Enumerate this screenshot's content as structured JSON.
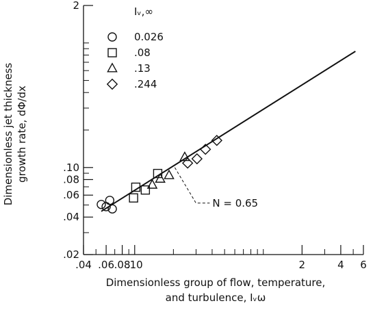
{
  "chart_data": {
    "type": "scatter",
    "title": "",
    "xlabel_line1": "Dimensionless group of flow, temperature,",
    "xlabel_line2": "and turbulence, Iᵥω",
    "ylabel_line1": "Dimensionless jet thickness",
    "ylabel_line2": "growth rate, dΦ/dx",
    "x_scale": "log",
    "y_scale": "log",
    "xlim": [
      0.04,
      6
    ],
    "ylim": [
      0.02,
      2
    ],
    "grid": false,
    "legend_placement": "top-left",
    "legend_title": "Iᵥ,∞",
    "x_ticks": [
      {
        "value": 0.04,
        "label": ".04"
      },
      {
        "value": 0.06,
        "label": ".06"
      },
      {
        "value": 0.08,
        "label": ".08"
      },
      {
        "value": 0.1,
        "label": ".10"
      },
      {
        "value": 2,
        "label": "2"
      },
      {
        "value": 4,
        "label": "4"
      },
      {
        "value": 6,
        "label": "6"
      }
    ],
    "x_minor_ticks": [
      0.05,
      0.07,
      0.09,
      0.2,
      0.3,
      0.4,
      0.5,
      0.6,
      0.7,
      0.8,
      0.9,
      1,
      3,
      5
    ],
    "y_ticks": [
      {
        "value": 0.02,
        "label": ".02"
      },
      {
        "value": 0.04,
        "label": ".04"
      },
      {
        "value": 0.06,
        "label": ".06"
      },
      {
        "value": 0.08,
        "label": ".08"
      },
      {
        "value": 0.1,
        "label": ".10"
      },
      {
        "value": 2,
        "label": "2"
      }
    ],
    "y_minor_ticks": [
      0.03,
      0.05,
      0.07,
      0.09,
      0.2,
      0.3,
      0.4,
      0.5,
      0.6,
      0.7,
      0.8,
      0.9,
      1
    ],
    "series": [
      {
        "name": "0.026",
        "legend_label": "0.026",
        "marker": "circle",
        "x": [
          0.055,
          0.06,
          0.064,
          0.067
        ],
        "y": [
          0.0505,
          0.0485,
          0.0545,
          0.0465
        ]
      },
      {
        "name": ".08",
        "legend_label": ".08",
        "marker": "square",
        "x": [
          0.098,
          0.102,
          0.121,
          0.151
        ],
        "y": [
          0.057,
          0.0695,
          0.066,
          0.0895
        ]
      },
      {
        "name": ".13",
        "legend_label": ".13",
        "marker": "triangle",
        "x": [
          0.137,
          0.158,
          0.185,
          0.245
        ],
        "y": [
          0.0725,
          0.081,
          0.0865,
          0.121
        ]
      },
      {
        "name": ".244",
        "legend_label": ".244",
        "marker": "diamond",
        "x": [
          0.258,
          0.305,
          0.355,
          0.435
        ],
        "y": [
          0.1085,
          0.1175,
          0.14,
          0.165
        ]
      }
    ],
    "fit_line": {
      "x": [
        0.055,
        5.2
      ],
      "y": [
        0.0445,
        0.857
      ],
      "label": "N = 0.65",
      "leader_from": {
        "x": 0.205,
        "y": 0.1
      }
    },
    "colors": {
      "ink": "#111111",
      "background": "#ffffff"
    }
  }
}
